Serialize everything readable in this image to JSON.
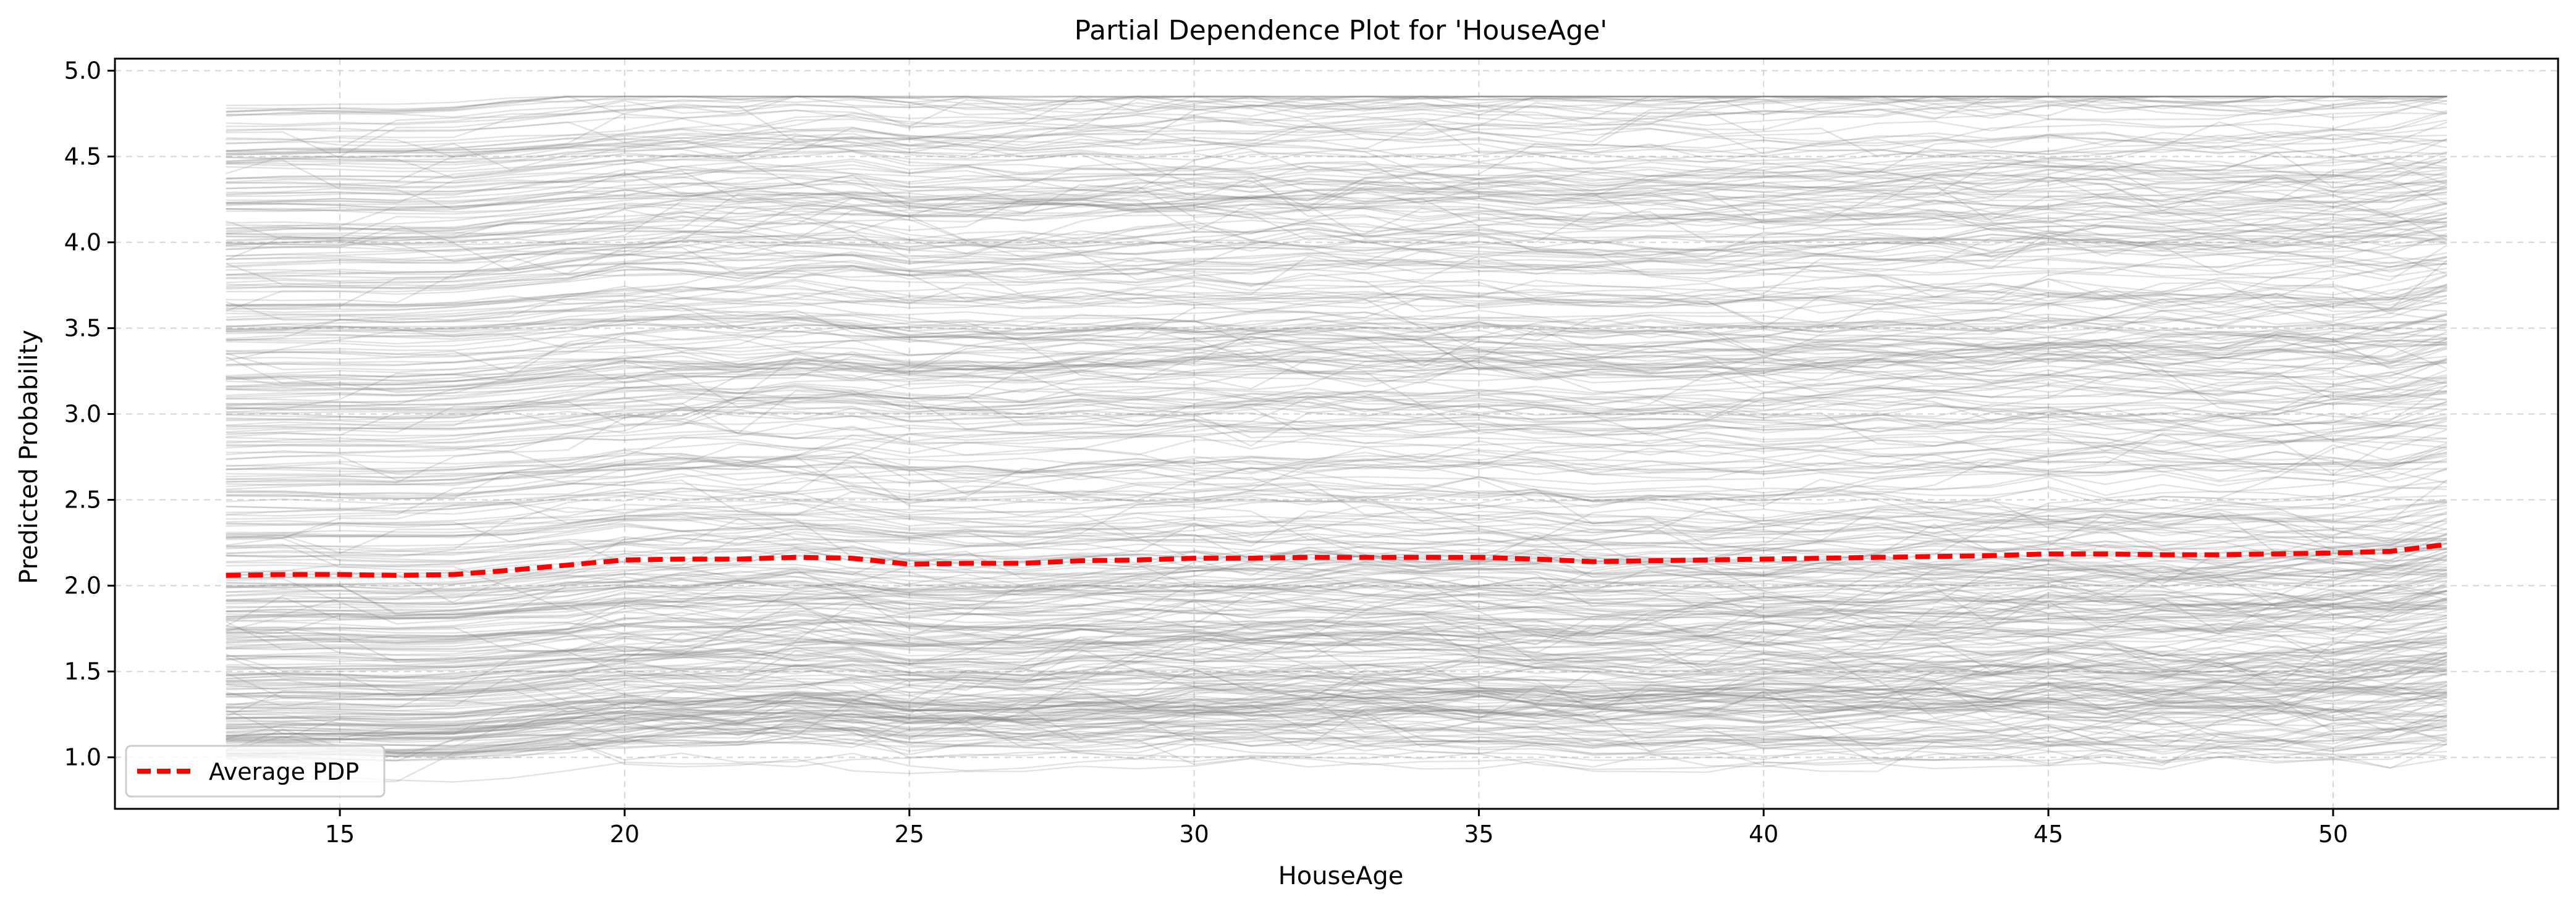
{
  "chart_data": {
    "type": "line",
    "title": "Partial Dependence Plot for 'HouseAge'",
    "xlabel": "HouseAge",
    "ylabel": "Predicted Probability",
    "xlim": [
      11.05,
      53.95
    ],
    "ylim": [
      0.7,
      5.07
    ],
    "x_ticks": [
      15,
      20,
      25,
      30,
      35,
      40,
      45,
      50
    ],
    "y_ticks": [
      1.0,
      1.5,
      2.0,
      2.5,
      3.0,
      3.5,
      4.0,
      4.5,
      5.0
    ],
    "x_tick_labels": [
      "15",
      "20",
      "25",
      "30",
      "35",
      "40",
      "45",
      "50"
    ],
    "y_tick_labels": [
      "1.0",
      "1.5",
      "2.0",
      "2.5",
      "3.0",
      "3.5",
      "4.0",
      "4.5",
      "5.0"
    ],
    "grid": true,
    "legend": {
      "placement": "lower-left",
      "entries": [
        "Average PDP"
      ]
    },
    "x": [
      13,
      14,
      15,
      16,
      17,
      18,
      19,
      20,
      21,
      22,
      23,
      24,
      25,
      26,
      27,
      28,
      29,
      30,
      31,
      32,
      33,
      34,
      35,
      36,
      37,
      38,
      39,
      40,
      41,
      42,
      43,
      44,
      45,
      46,
      47,
      48,
      49,
      50,
      51,
      52
    ],
    "series": [
      {
        "name": "Average PDP",
        "values": [
          2.06,
          2.065,
          2.065,
          2.06,
          2.065,
          2.09,
          2.12,
          2.15,
          2.155,
          2.155,
          2.165,
          2.16,
          2.125,
          2.13,
          2.13,
          2.145,
          2.15,
          2.16,
          2.16,
          2.165,
          2.165,
          2.165,
          2.165,
          2.155,
          2.14,
          2.145,
          2.15,
          2.155,
          2.16,
          2.165,
          2.17,
          2.175,
          2.185,
          2.185,
          2.18,
          2.18,
          2.185,
          2.19,
          2.2,
          2.24
        ],
        "color": "#ff0000",
        "style": "dashed"
      }
    ],
    "ice_lines": {
      "description_color": "#808080",
      "count": 420,
      "range": [
        0.85,
        4.85
      ]
    }
  }
}
